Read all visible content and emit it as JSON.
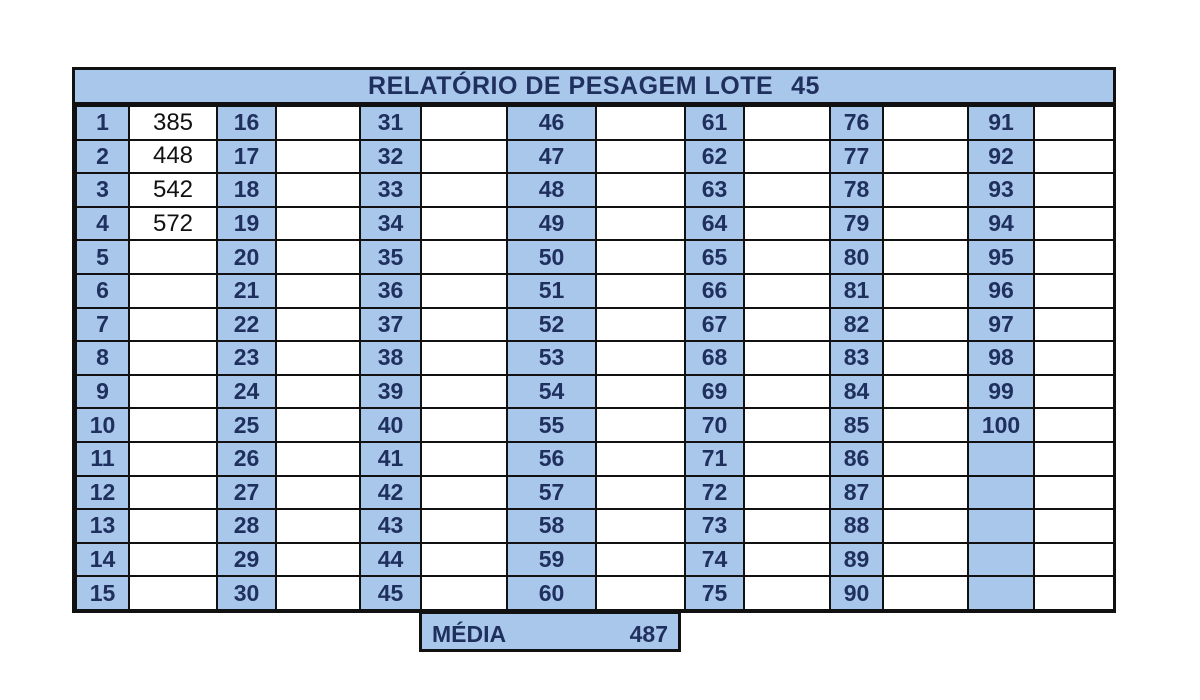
{
  "report": {
    "title": "RELATÓRIO DE PESAGEM LOTE",
    "lot": "45",
    "entries": [
      {
        "n": "1",
        "w": "385"
      },
      {
        "n": "2",
        "w": "448"
      },
      {
        "n": "3",
        "w": "542"
      },
      {
        "n": "4",
        "w": "572"
      },
      {
        "n": "5",
        "w": ""
      },
      {
        "n": "6",
        "w": ""
      },
      {
        "n": "7",
        "w": ""
      },
      {
        "n": "8",
        "w": ""
      },
      {
        "n": "9",
        "w": ""
      },
      {
        "n": "10",
        "w": ""
      },
      {
        "n": "11",
        "w": ""
      },
      {
        "n": "12",
        "w": ""
      },
      {
        "n": "13",
        "w": ""
      },
      {
        "n": "14",
        "w": ""
      },
      {
        "n": "15",
        "w": ""
      },
      {
        "n": "16",
        "w": ""
      },
      {
        "n": "17",
        "w": ""
      },
      {
        "n": "18",
        "w": ""
      },
      {
        "n": "19",
        "w": ""
      },
      {
        "n": "20",
        "w": ""
      },
      {
        "n": "21",
        "w": ""
      },
      {
        "n": "22",
        "w": ""
      },
      {
        "n": "23",
        "w": ""
      },
      {
        "n": "24",
        "w": ""
      },
      {
        "n": "25",
        "w": ""
      },
      {
        "n": "26",
        "w": ""
      },
      {
        "n": "27",
        "w": ""
      },
      {
        "n": "28",
        "w": ""
      },
      {
        "n": "29",
        "w": ""
      },
      {
        "n": "30",
        "w": ""
      },
      {
        "n": "31",
        "w": ""
      },
      {
        "n": "32",
        "w": ""
      },
      {
        "n": "33",
        "w": ""
      },
      {
        "n": "34",
        "w": ""
      },
      {
        "n": "35",
        "w": ""
      },
      {
        "n": "36",
        "w": ""
      },
      {
        "n": "37",
        "w": ""
      },
      {
        "n": "38",
        "w": ""
      },
      {
        "n": "39",
        "w": ""
      },
      {
        "n": "40",
        "w": ""
      },
      {
        "n": "41",
        "w": ""
      },
      {
        "n": "42",
        "w": ""
      },
      {
        "n": "43",
        "w": ""
      },
      {
        "n": "44",
        "w": ""
      },
      {
        "n": "45",
        "w": ""
      },
      {
        "n": "46",
        "w": ""
      },
      {
        "n": "47",
        "w": ""
      },
      {
        "n": "48",
        "w": ""
      },
      {
        "n": "49",
        "w": ""
      },
      {
        "n": "50",
        "w": ""
      },
      {
        "n": "51",
        "w": ""
      },
      {
        "n": "52",
        "w": ""
      },
      {
        "n": "53",
        "w": ""
      },
      {
        "n": "54",
        "w": ""
      },
      {
        "n": "55",
        "w": ""
      },
      {
        "n": "56",
        "w": ""
      },
      {
        "n": "57",
        "w": ""
      },
      {
        "n": "58",
        "w": ""
      },
      {
        "n": "59",
        "w": ""
      },
      {
        "n": "60",
        "w": ""
      },
      {
        "n": "61",
        "w": ""
      },
      {
        "n": "62",
        "w": ""
      },
      {
        "n": "63",
        "w": ""
      },
      {
        "n": "64",
        "w": ""
      },
      {
        "n": "65",
        "w": ""
      },
      {
        "n": "66",
        "w": ""
      },
      {
        "n": "67",
        "w": ""
      },
      {
        "n": "68",
        "w": ""
      },
      {
        "n": "69",
        "w": ""
      },
      {
        "n": "70",
        "w": ""
      },
      {
        "n": "71",
        "w": ""
      },
      {
        "n": "72",
        "w": ""
      },
      {
        "n": "73",
        "w": ""
      },
      {
        "n": "74",
        "w": ""
      },
      {
        "n": "75",
        "w": ""
      },
      {
        "n": "76",
        "w": ""
      },
      {
        "n": "77",
        "w": ""
      },
      {
        "n": "78",
        "w": ""
      },
      {
        "n": "79",
        "w": ""
      },
      {
        "n": "80",
        "w": ""
      },
      {
        "n": "81",
        "w": ""
      },
      {
        "n": "82",
        "w": ""
      },
      {
        "n": "83",
        "w": ""
      },
      {
        "n": "84",
        "w": ""
      },
      {
        "n": "85",
        "w": ""
      },
      {
        "n": "86",
        "w": ""
      },
      {
        "n": "87",
        "w": ""
      },
      {
        "n": "88",
        "w": ""
      },
      {
        "n": "89",
        "w": ""
      },
      {
        "n": "90",
        "w": ""
      },
      {
        "n": "91",
        "w": ""
      },
      {
        "n": "92",
        "w": ""
      },
      {
        "n": "93",
        "w": ""
      },
      {
        "n": "94",
        "w": ""
      },
      {
        "n": "95",
        "w": ""
      },
      {
        "n": "96",
        "w": ""
      },
      {
        "n": "97",
        "w": ""
      },
      {
        "n": "98",
        "w": ""
      },
      {
        "n": "99",
        "w": ""
      },
      {
        "n": "100",
        "w": ""
      },
      {
        "n": "",
        "w": ""
      },
      {
        "n": "",
        "w": ""
      },
      {
        "n": "",
        "w": ""
      },
      {
        "n": "",
        "w": ""
      },
      {
        "n": "",
        "w": ""
      }
    ],
    "average_label": "MÉDIA",
    "average_value": "487"
  },
  "colors": {
    "header_fill": "#a9c7ea",
    "header_text": "#1f2f5e",
    "value_fill": "#ffffff",
    "border": "#111111"
  }
}
